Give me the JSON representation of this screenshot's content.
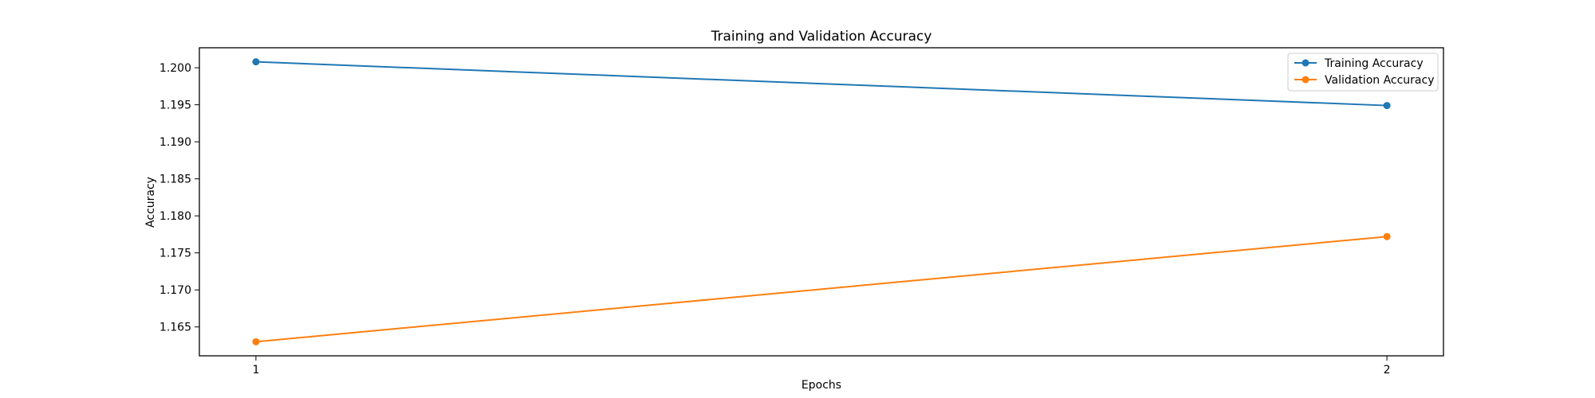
{
  "chart_data": {
    "type": "line",
    "title": "Training and Validation Accuracy",
    "xlabel": "Epochs",
    "ylabel": "Accuracy",
    "x": [
      1,
      2
    ],
    "x_ticks": [
      "1",
      "2"
    ],
    "xlim": [
      0.95,
      2.05
    ],
    "ylim": [
      1.1611,
      1.2027
    ],
    "y_ticks": [
      1.165,
      1.17,
      1.175,
      1.18,
      1.185,
      1.19,
      1.195,
      1.2
    ],
    "y_tick_labels": [
      "1.165",
      "1.170",
      "1.175",
      "1.180",
      "1.185",
      "1.190",
      "1.195",
      "1.200"
    ],
    "series": [
      {
        "name": "Training Accuracy",
        "values": [
          1.2008,
          1.1949
        ],
        "color": "#1f77b4"
      },
      {
        "name": "Validation Accuracy",
        "values": [
          1.163,
          1.1772
        ],
        "color": "#ff7f0e"
      }
    ],
    "grid": false,
    "legend_position": "top-right",
    "marker": "circle"
  }
}
